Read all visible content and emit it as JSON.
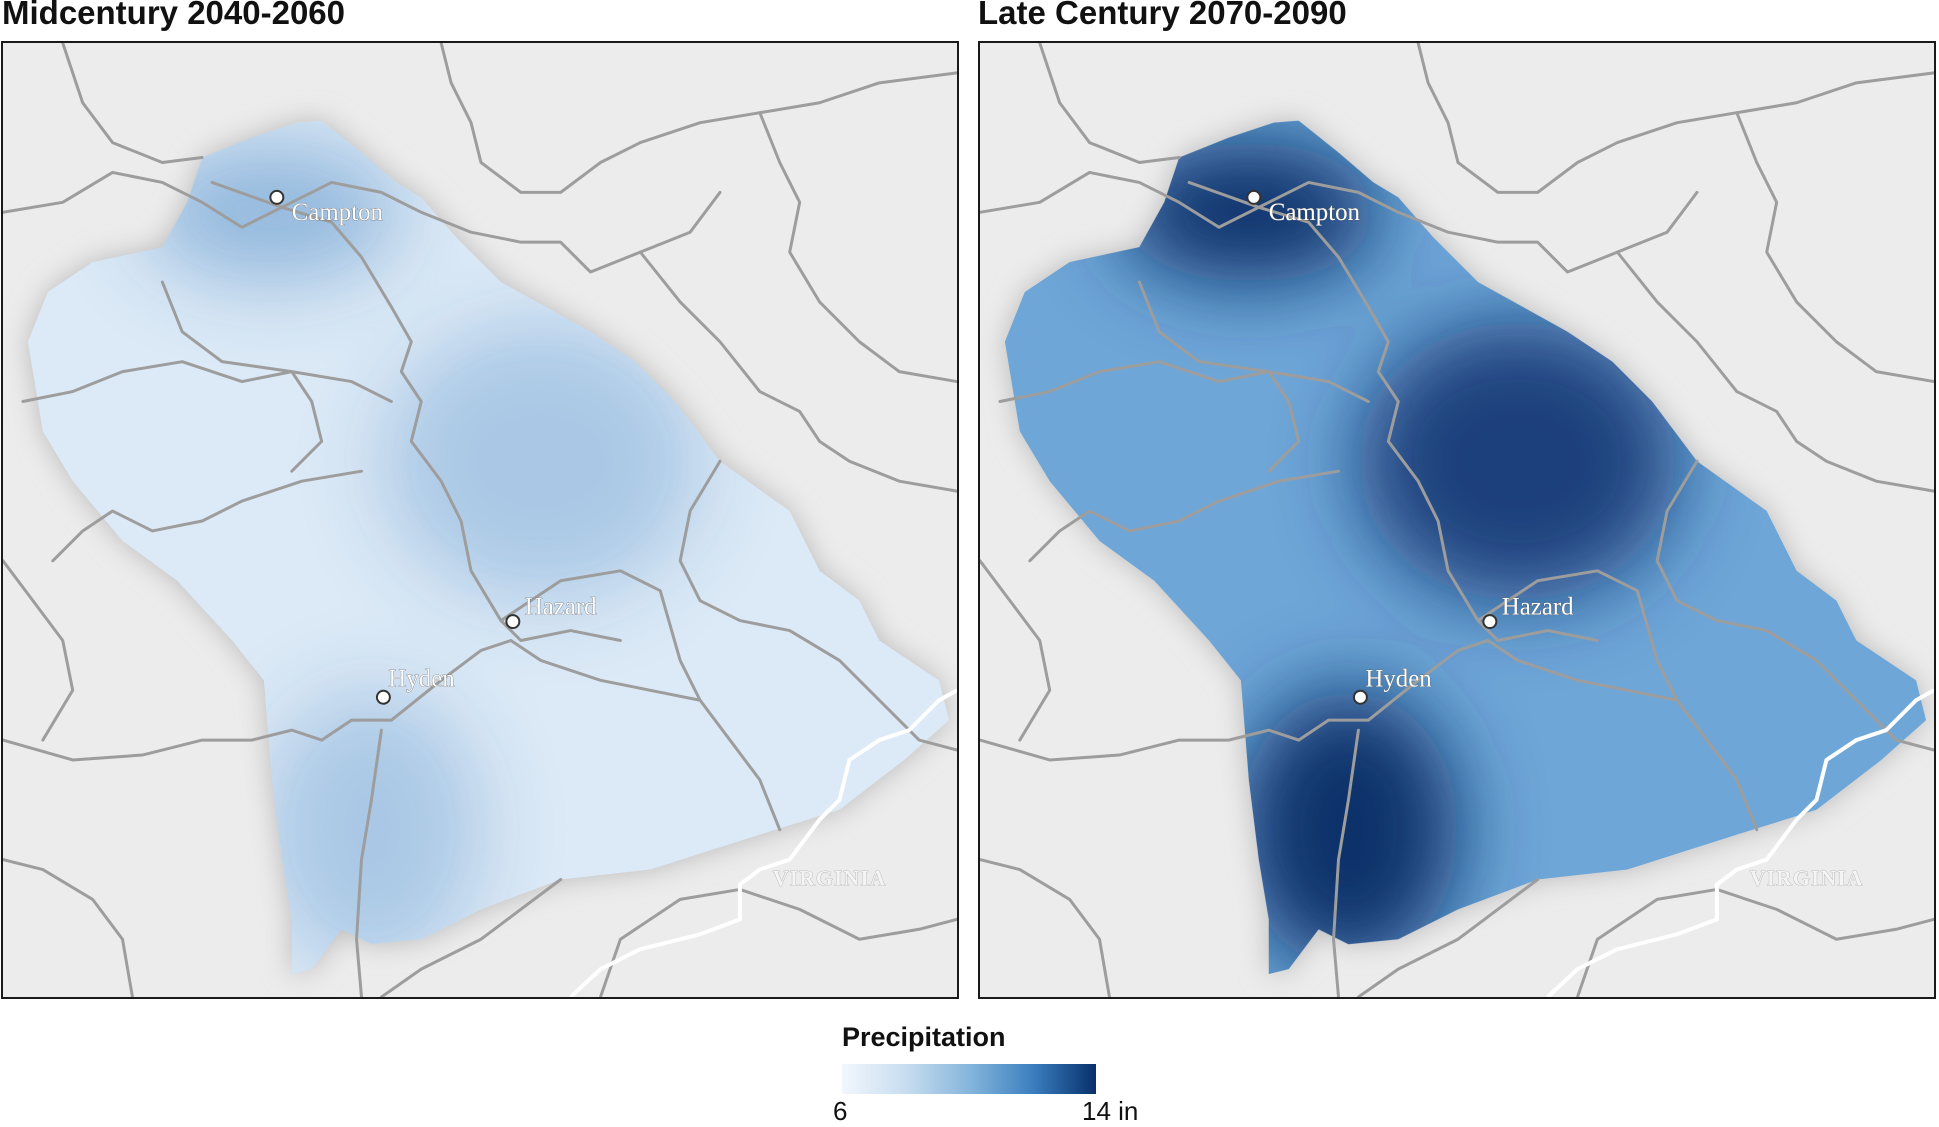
{
  "legend": {
    "title": "Precipitation",
    "min_label": "6",
    "max_label": "14 in",
    "min_value": 6,
    "max_value": 14,
    "unit": "in",
    "colors": [
      "#f2f7fd",
      "#c8ddf0",
      "#86b6dc",
      "#3b7fbf",
      "#08306b"
    ]
  },
  "maps": [
    {
      "title": "Midcentury 2040-2060",
      "base_color": "#dce9f6",
      "blobs": [
        {
          "area": "north-campton",
          "level": 0.45
        },
        {
          "area": "center-east",
          "level": 0.3
        },
        {
          "area": "south-west",
          "level": 0.3
        }
      ],
      "cities": [
        "Campton",
        "Hazard",
        "Hyden"
      ],
      "state_label": "VIRGINIA"
    },
    {
      "title": "Late Century 2070-2090",
      "base_color": "#6ea6d8",
      "blobs": [
        {
          "area": "north-campton",
          "level": 1.0
        },
        {
          "area": "center-east",
          "level": 0.85
        },
        {
          "area": "south-west",
          "level": 1.0
        }
      ],
      "cities": [
        "Campton",
        "Hazard",
        "Hyden"
      ],
      "state_label": "VIRGINIA"
    }
  ]
}
